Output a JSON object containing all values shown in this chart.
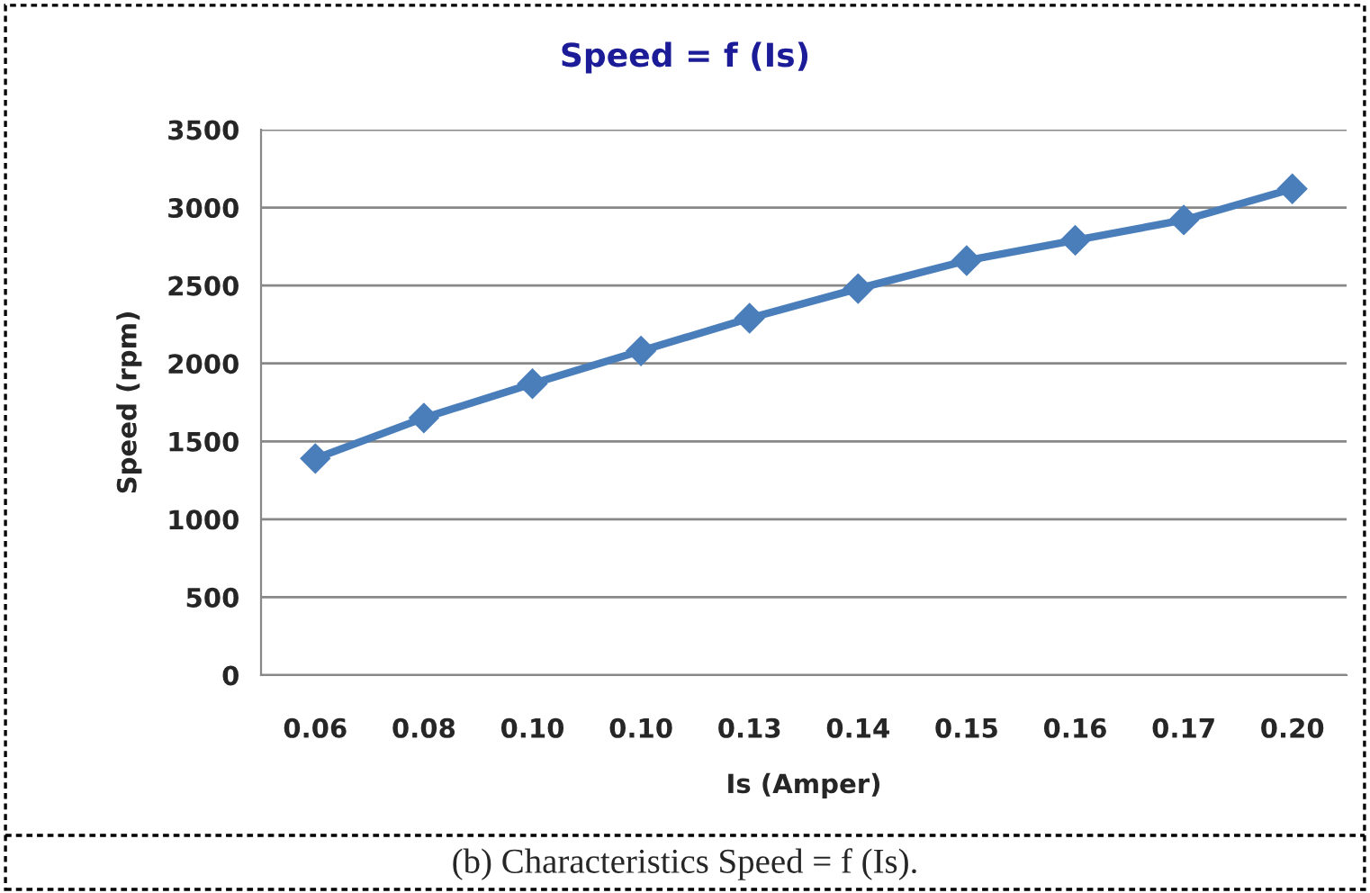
{
  "chart_data": {
    "type": "line",
    "title": "Speed = f (Is)",
    "xlabel": "Is (Amper)",
    "ylabel": "Speed (rpm)",
    "categories": [
      "0.06",
      "0.08",
      "0.10",
      "0.10",
      "0.13",
      "0.14",
      "0.15",
      "0.16",
      "0.17",
      "0.20"
    ],
    "series": [
      {
        "color": "#4a7ebb",
        "values": [
          1390,
          1650,
          1870,
          2080,
          2290,
          2480,
          2660,
          2790,
          2920,
          3120
        ]
      }
    ],
    "ylim": [
      0,
      3500
    ],
    "yticks": [
      0,
      500,
      1000,
      1500,
      2000,
      2500,
      3000,
      3500
    ],
    "grid": "y",
    "legend": false,
    "marker": "diamond",
    "line_style": "solid",
    "annotations": [
      "(b) Characteristics Speed = f (Is)."
    ]
  }
}
